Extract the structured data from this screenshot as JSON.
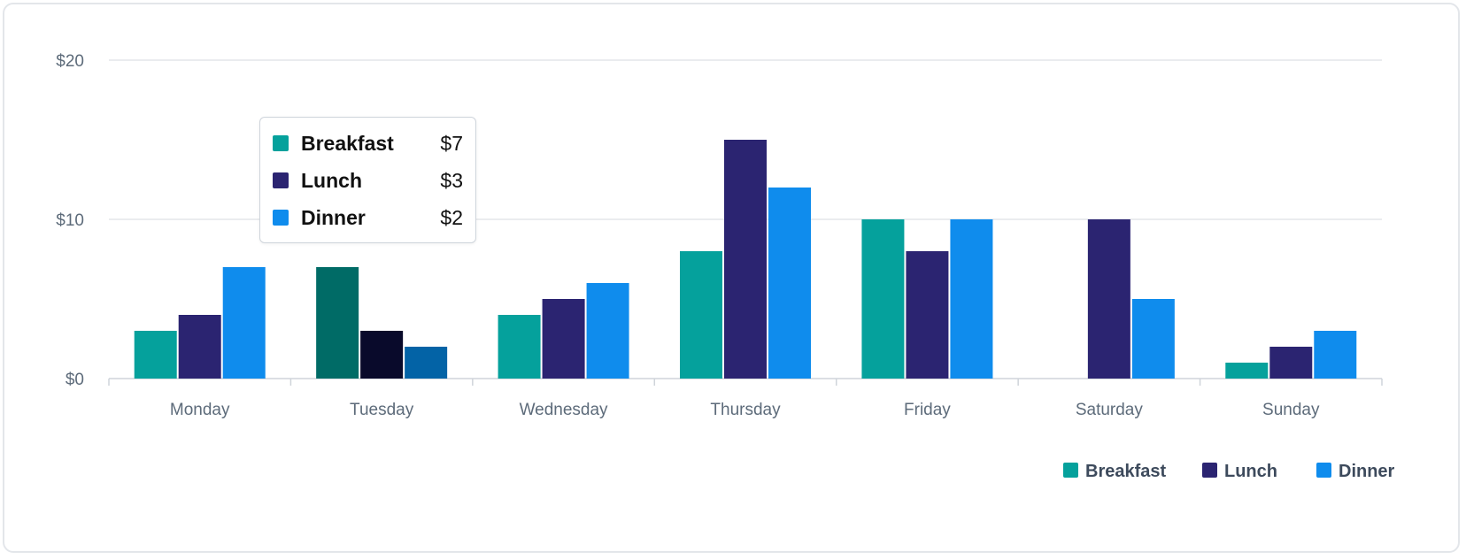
{
  "chart_data": {
    "type": "bar",
    "categories": [
      "Monday",
      "Tuesday",
      "Wednesday",
      "Thursday",
      "Friday",
      "Saturday",
      "Sunday"
    ],
    "series": [
      {
        "name": "Breakfast",
        "color": "#05a19c",
        "values": [
          3,
          7,
          4,
          8,
          10,
          0,
          1
        ]
      },
      {
        "name": "Lunch",
        "color": "#2b2471",
        "values": [
          4,
          3,
          5,
          15,
          8,
          10,
          2
        ]
      },
      {
        "name": "Dinner",
        "color": "#0f8ced",
        "values": [
          7,
          2,
          6,
          12,
          10,
          5,
          3
        ]
      }
    ],
    "ylim": [
      0,
      20
    ],
    "yticks": [
      0,
      10,
      20
    ],
    "ytick_labels": [
      "$0",
      "$10",
      "$20"
    ],
    "grid": true,
    "legend": "bottom-right",
    "highlighted_category": "Tuesday",
    "highlight_colors": [
      "#006b66",
      "#090a2b",
      "#0363a6"
    ]
  },
  "tooltip": {
    "rows": [
      {
        "label": "Breakfast",
        "value": "$7",
        "color": "#05a19c"
      },
      {
        "label": "Lunch",
        "value": "$3",
        "color": "#2b2471"
      },
      {
        "label": "Dinner",
        "value": "$2",
        "color": "#0f8ced"
      }
    ]
  },
  "legend": {
    "items": [
      {
        "label": "Breakfast",
        "color": "#05a19c"
      },
      {
        "label": "Lunch",
        "color": "#2b2471"
      },
      {
        "label": "Dinner",
        "color": "#0f8ced"
      }
    ]
  }
}
